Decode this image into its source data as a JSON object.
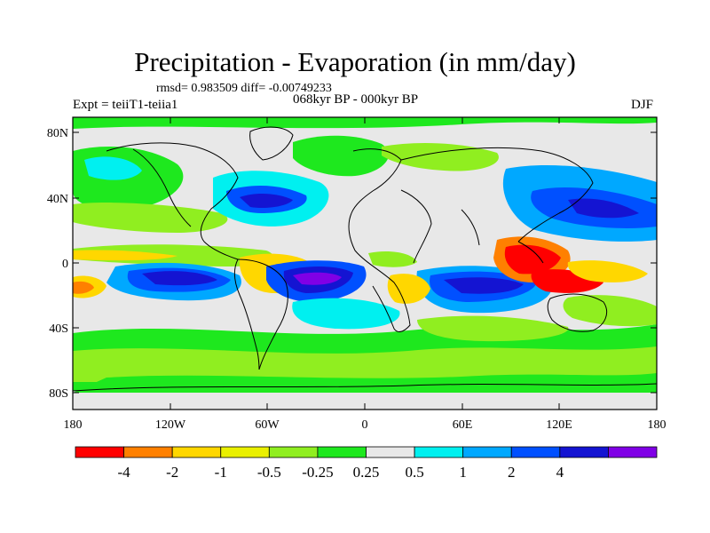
{
  "title": "Precipitation - Evaporation (in mm/day)",
  "stats": "rmsd= 0.983509 diff= -0.00749233",
  "experiment": "Expt = teiiT1-teiia1",
  "period_difference": "068kyr BP - 000kyr BP",
  "season": "DJF",
  "axes": {
    "lat_ticks": [
      "80N",
      "40N",
      "0",
      "40S",
      "80S"
    ],
    "lon_ticks": [
      "180",
      "120W",
      "60W",
      "0",
      "60E",
      "120E",
      "180"
    ]
  },
  "colorbar": {
    "colors": [
      "#ff0000",
      "#ff8000",
      "#ffd700",
      "#eaf000",
      "#90ee20",
      "#1ee81e",
      "#e8e8e8",
      "#00f0f0",
      "#00a8ff",
      "#0050ff",
      "#1414d2",
      "#8000e6"
    ],
    "labels": [
      "-4",
      "-2",
      "-1",
      "-0.5",
      "-0.25",
      "0.25",
      "0.5",
      "1",
      "2",
      "4"
    ]
  }
}
